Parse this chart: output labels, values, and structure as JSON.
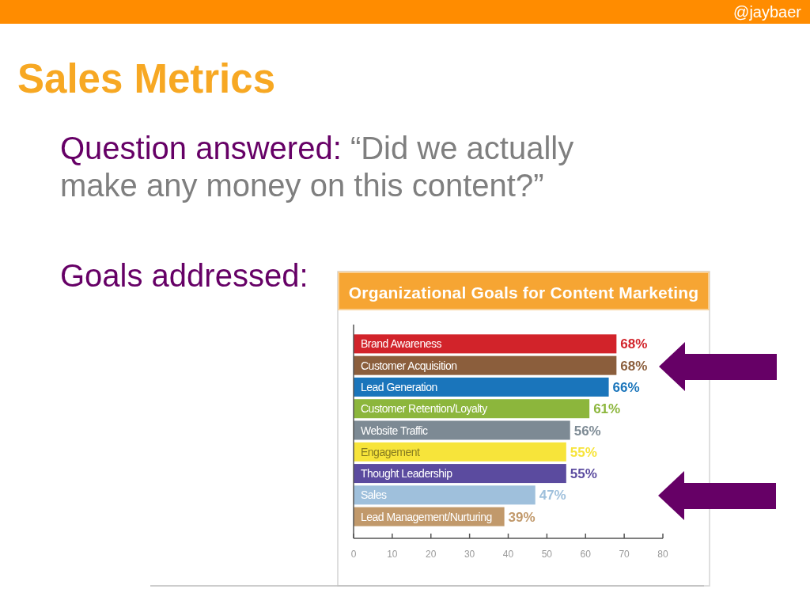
{
  "chart_data": {
    "type": "bar",
    "orientation": "horizontal",
    "title": "Sales Metrics",
    "subtitle": "Organizational Goals for Content Marketing",
    "annotations": [
      "@jaybaer",
      "Question answered: “Did we actually make any money on this content?”",
      "Goals addressed:"
    ],
    "categories": [
      "Brand Awareness",
      "Customer Acquisition",
      "Lead Generation",
      "Customer Retention/Loyalty",
      "Website Traffic",
      "Engagement",
      "Thought Leadership",
      "Sales",
      "Lead Management/Nurturing"
    ],
    "values": [
      68,
      68,
      66,
      61,
      56,
      55,
      55,
      47,
      39
    ],
    "colors": [
      "#d2232a",
      "#8b5e3c",
      "#1a75bb",
      "#8cb63c",
      "#7d8a94",
      "#f7e43a",
      "#5b4b9f",
      "#9fc0dc",
      "#c1996b"
    ],
    "value_labels": [
      "68%",
      "68%",
      "66%",
      "61%",
      "56%",
      "55%",
      "55%",
      "47%",
      "39%"
    ],
    "xlim": [
      0,
      80
    ],
    "xticks": [
      0,
      10,
      20,
      30,
      40,
      50,
      60,
      70,
      80
    ]
  }
}
